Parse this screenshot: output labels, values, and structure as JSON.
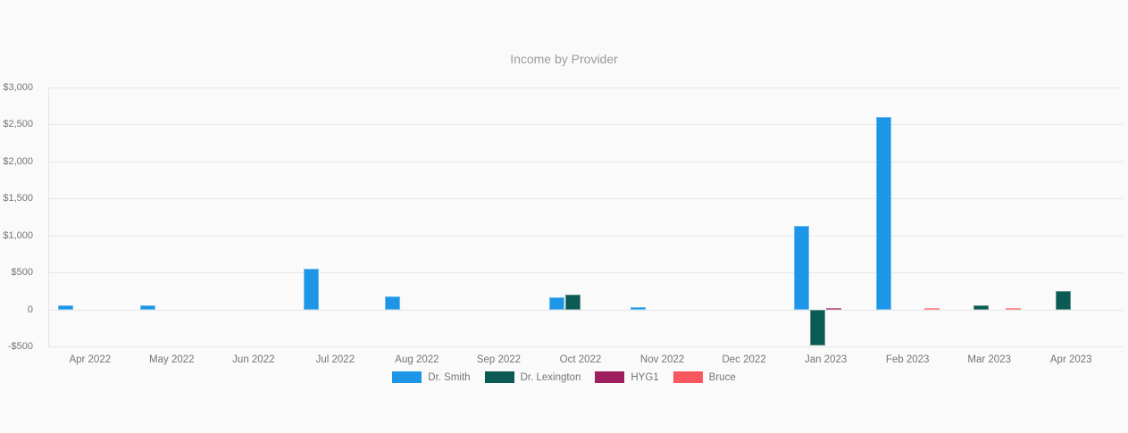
{
  "page": {
    "background_color": "#fafafa"
  },
  "chart_data": {
    "type": "bar",
    "title": "Income by Provider",
    "title_color": "#9c9c9c",
    "categories": [
      "Apr 2022",
      "May 2022",
      "Jun 2022",
      "Jul 2022",
      "Aug 2022",
      "Sep 2022",
      "Oct 2022",
      "Nov 2022",
      "Dec 2022",
      "Jan 2023",
      "Feb 2023",
      "Mar 2023",
      "Apr 2023"
    ],
    "series": [
      {
        "name": "Dr. Smith",
        "color": "#1e96e8",
        "values": [
          50,
          50,
          null,
          550,
          180,
          null,
          160,
          30,
          null,
          1130,
          2600,
          null,
          null
        ]
      },
      {
        "name": "Dr. Lexington",
        "color": "#0b5a54",
        "values": [
          null,
          null,
          null,
          null,
          null,
          null,
          200,
          null,
          null,
          -490,
          null,
          55,
          245
        ]
      },
      {
        "name": "HYG1",
        "color": "#9e1f5f",
        "values": [
          null,
          null,
          null,
          null,
          null,
          null,
          null,
          null,
          null,
          20,
          null,
          null,
          null
        ]
      },
      {
        "name": "Bruce",
        "color": "#f9575f",
        "values": [
          null,
          null,
          null,
          null,
          null,
          null,
          null,
          null,
          null,
          null,
          15,
          15,
          null
        ]
      }
    ],
    "y_axis": {
      "min": -500,
      "max": 3000,
      "step": 500,
      "tick_labels": [
        "$3,000",
        "$2,500",
        "$2,000",
        "$1,500",
        "$1,000",
        "$500",
        "0",
        "-$500"
      ],
      "tick_color": "#757575"
    },
    "x_axis": {
      "tick_color": "#757575"
    },
    "grid": true,
    "gridline_color": "#e7e7e7",
    "legend_position": "bottom"
  }
}
